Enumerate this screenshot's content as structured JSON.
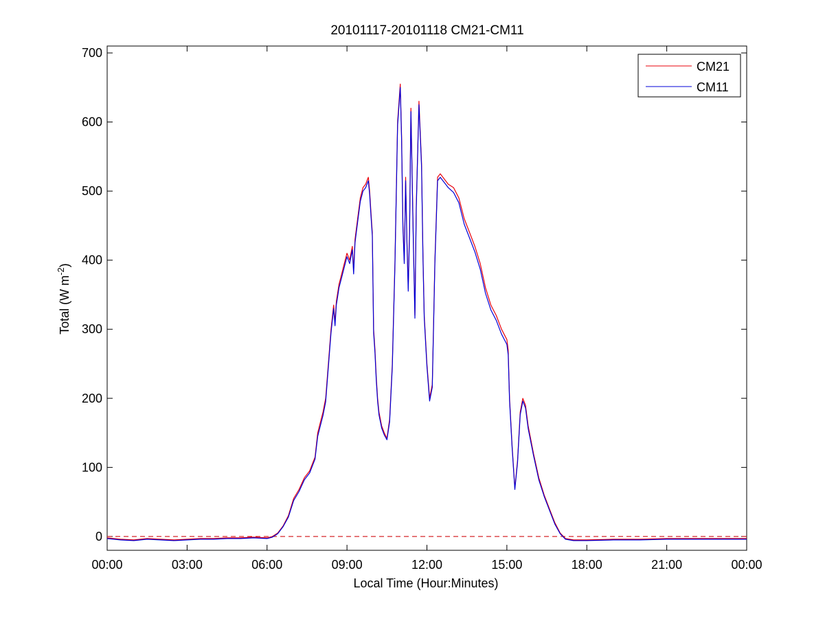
{
  "chart_data": {
    "type": "line",
    "title": "20101117-20101118 CM21-CM11",
    "xlabel": "Local Time (Hour:Minutes)",
    "ylabel": {
      "main": "Total (W m",
      "sup": "-2",
      "close": ")"
    },
    "x_unit": "hours",
    "xlim": [
      0,
      24
    ],
    "ylim": [
      -20,
      710
    ],
    "x_ticks": [
      {
        "value": 0,
        "label": "00:00"
      },
      {
        "value": 3,
        "label": "03:00"
      },
      {
        "value": 6,
        "label": "06:00"
      },
      {
        "value": 9,
        "label": "09:00"
      },
      {
        "value": 12,
        "label": "12:00"
      },
      {
        "value": 15,
        "label": "15:00"
      },
      {
        "value": 18,
        "label": "18:00"
      },
      {
        "value": 21,
        "label": "21:00"
      },
      {
        "value": 24,
        "label": "00:00"
      }
    ],
    "y_ticks": [
      0,
      100,
      200,
      300,
      400,
      500,
      600,
      700
    ],
    "y_tick_labels": [
      "0",
      "100",
      "200",
      "300",
      "400",
      "500",
      "600",
      "700"
    ],
    "grid": false,
    "legend_position": "top-right",
    "reference_line": {
      "y": 0,
      "style": "dashed",
      "color": "#d62728"
    },
    "series": [
      {
        "name": "CM21",
        "color": "#e8000b",
        "x": [
          0,
          0.5,
          1,
          1.5,
          2,
          2.5,
          3,
          3.5,
          4,
          4.5,
          5,
          5.5,
          6,
          6.2,
          6.4,
          6.6,
          6.8,
          7,
          7.2,
          7.4,
          7.6,
          7.8,
          7.9,
          8,
          8.1,
          8.2,
          8.3,
          8.4,
          8.5,
          8.55,
          8.6,
          8.7,
          8.8,
          8.9,
          9,
          9.05,
          9.1,
          9.2,
          9.25,
          9.3,
          9.4,
          9.5,
          9.6,
          9.7,
          9.8,
          9.85,
          9.9,
          9.95,
          10,
          10.05,
          10.1,
          10.15,
          10.2,
          10.3,
          10.4,
          10.5,
          10.6,
          10.7,
          10.8,
          10.9,
          11,
          11.05,
          11.1,
          11.15,
          11.2,
          11.25,
          11.3,
          11.35,
          11.4,
          11.5,
          11.55,
          11.6,
          11.7,
          11.8,
          11.85,
          11.9,
          12,
          12.1,
          12.2,
          12.3,
          12.4,
          12.5,
          12.6,
          12.7,
          12.8,
          13,
          13.2,
          13.4,
          13.6,
          13.8,
          14,
          14.2,
          14.4,
          14.6,
          14.8,
          15,
          15.05,
          15.1,
          15.2,
          15.3,
          15.4,
          15.5,
          15.6,
          15.7,
          15.8,
          16,
          16.2,
          16.4,
          16.6,
          16.8,
          17,
          17.2,
          17.5,
          18,
          19,
          20,
          21,
          22,
          23,
          24
        ],
        "y": [
          -2,
          -4,
          -5,
          -3,
          -4,
          -5,
          -4,
          -3,
          -3,
          -2,
          -2,
          -1,
          -2,
          0,
          5,
          15,
          30,
          55,
          68,
          85,
          95,
          115,
          150,
          165,
          180,
          200,
          250,
          300,
          335,
          310,
          340,
          365,
          380,
          395,
          410,
          405,
          400,
          420,
          385,
          430,
          460,
          490,
          505,
          510,
          520,
          500,
          470,
          440,
          300,
          270,
          230,
          200,
          180,
          160,
          150,
          142,
          170,
          250,
          400,
          600,
          655,
          580,
          450,
          400,
          520,
          430,
          360,
          450,
          620,
          410,
          320,
          480,
          630,
          540,
          410,
          320,
          250,
          200,
          220,
          400,
          520,
          525,
          520,
          515,
          510,
          505,
          490,
          460,
          440,
          420,
          395,
          360,
          335,
          320,
          300,
          285,
          270,
          200,
          130,
          70,
          110,
          180,
          200,
          190,
          160,
          120,
          85,
          60,
          40,
          20,
          5,
          -3,
          -5,
          -5,
          -4,
          -4,
          -3,
          -3,
          -3,
          -3
        ]
      },
      {
        "name": "CM11",
        "color": "#0000d8",
        "x": [
          0,
          0.5,
          1,
          1.5,
          2,
          2.5,
          3,
          3.5,
          4,
          4.5,
          5,
          5.5,
          6,
          6.2,
          6.4,
          6.6,
          6.8,
          7,
          7.2,
          7.4,
          7.6,
          7.8,
          7.9,
          8,
          8.1,
          8.2,
          8.3,
          8.4,
          8.5,
          8.55,
          8.6,
          8.7,
          8.8,
          8.9,
          9,
          9.05,
          9.1,
          9.2,
          9.25,
          9.3,
          9.4,
          9.5,
          9.6,
          9.7,
          9.8,
          9.85,
          9.9,
          9.95,
          10,
          10.05,
          10.1,
          10.15,
          10.2,
          10.3,
          10.4,
          10.5,
          10.6,
          10.7,
          10.8,
          10.9,
          11,
          11.05,
          11.1,
          11.15,
          11.2,
          11.25,
          11.3,
          11.35,
          11.4,
          11.5,
          11.55,
          11.6,
          11.7,
          11.8,
          11.85,
          11.9,
          12,
          12.1,
          12.2,
          12.3,
          12.4,
          12.5,
          12.6,
          12.7,
          12.8,
          13,
          13.2,
          13.4,
          13.6,
          13.8,
          14,
          14.2,
          14.4,
          14.6,
          14.8,
          15,
          15.05,
          15.1,
          15.2,
          15.3,
          15.4,
          15.5,
          15.6,
          15.7,
          15.8,
          16,
          16.2,
          16.4,
          16.6,
          16.8,
          17,
          17.2,
          17.5,
          18,
          19,
          20,
          21,
          22,
          23,
          24
        ],
        "y": [
          -3,
          -5,
          -6,
          -4,
          -5,
          -6,
          -5,
          -4,
          -4,
          -3,
          -3,
          -2,
          -3,
          -1,
          4,
          14,
          28,
          52,
          65,
          82,
          92,
          112,
          145,
          160,
          175,
          195,
          245,
          295,
          330,
          305,
          335,
          360,
          375,
          390,
          405,
          400,
          395,
          415,
          380,
          425,
          455,
          485,
          500,
          505,
          515,
          495,
          465,
          435,
          295,
          265,
          225,
          196,
          176,
          157,
          147,
          140,
          166,
          245,
          395,
          595,
          650,
          575,
          445,
          395,
          515,
          425,
          355,
          445,
          615,
          405,
          316,
          475,
          625,
          535,
          405,
          316,
          246,
          196,
          216,
          395,
          515,
          520,
          515,
          510,
          505,
          498,
          483,
          452,
          432,
          412,
          387,
          352,
          328,
          313,
          293,
          278,
          263,
          196,
          127,
          68,
          107,
          176,
          196,
          186,
          156,
          117,
          82,
          58,
          38,
          18,
          4,
          -4,
          -6,
          -6,
          -5,
          -5,
          -4,
          -4,
          -4,
          -4
        ]
      }
    ]
  }
}
